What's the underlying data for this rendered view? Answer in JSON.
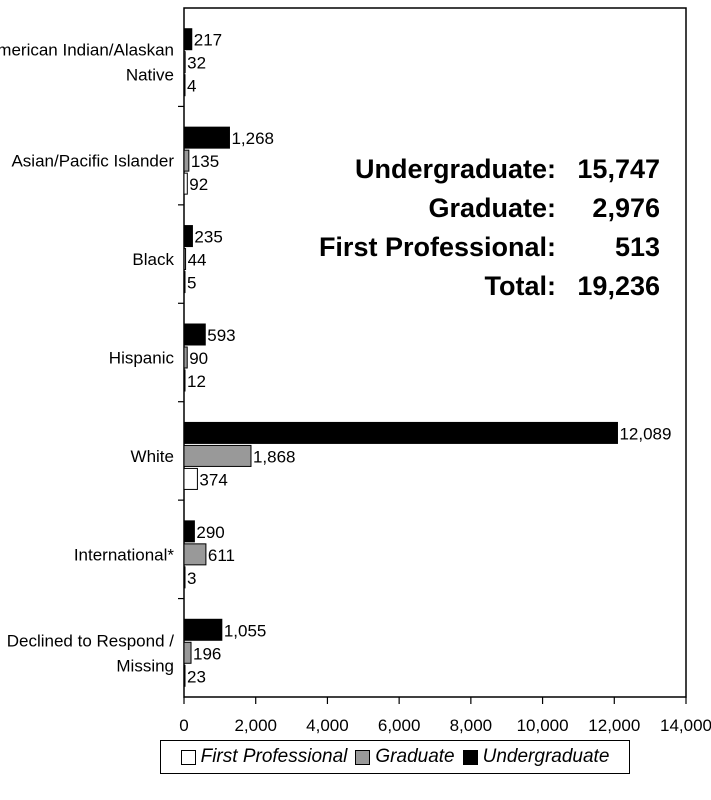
{
  "chart_data": {
    "type": "bar",
    "orientation": "horizontal",
    "categories": [
      "American Indian/Alaskan Native",
      "Asian/Pacific Islander",
      "Black",
      "Hispanic",
      "White",
      "International*",
      "Declined to Respond / Missing"
    ],
    "category_label_lines": [
      [
        "American Indian/Alaskan",
        "Native"
      ],
      [
        "Asian/Pacific Islander"
      ],
      [
        "Black"
      ],
      [
        "Hispanic"
      ],
      [
        "White"
      ],
      [
        "International*"
      ],
      [
        "Declined to Respond /",
        "Missing"
      ]
    ],
    "series": [
      {
        "name": "Undergraduate",
        "color": "#000000",
        "values": [
          217,
          1268,
          235,
          593,
          12089,
          290,
          1055
        ],
        "labels": [
          "217",
          "1,268",
          "235",
          "593",
          "12,089",
          "290",
          "1,055"
        ]
      },
      {
        "name": "Graduate",
        "color": "#999999",
        "values": [
          32,
          135,
          44,
          90,
          1868,
          611,
          196
        ],
        "labels": [
          "32",
          "135",
          "44",
          "90",
          "1,868",
          "611",
          "196"
        ]
      },
      {
        "name": "First Professional",
        "color": "#ffffff",
        "values": [
          4,
          92,
          5,
          12,
          374,
          3,
          23
        ],
        "labels": [
          "4",
          "92",
          "5",
          "12",
          "374",
          "3",
          "23"
        ]
      }
    ],
    "x_ticks": [
      0,
      2000,
      4000,
      6000,
      8000,
      10000,
      12000,
      14000
    ],
    "x_tick_labels": [
      "0",
      "2,000",
      "4,000",
      "6,000",
      "8,000",
      "10,000",
      "12,000",
      "14,000"
    ],
    "xlim": [
      0,
      14000
    ],
    "grid": false,
    "legend_placement": "bottom",
    "legend": [
      "First Professional",
      "Graduate",
      "Undergraduate"
    ]
  },
  "summary": [
    {
      "label": "Undergraduate:",
      "value": "15,747"
    },
    {
      "label": "Graduate:",
      "value": "2,976"
    },
    {
      "label": "First Professional:",
      "value": "513"
    },
    {
      "label": "Total:",
      "value": "19,236"
    }
  ]
}
